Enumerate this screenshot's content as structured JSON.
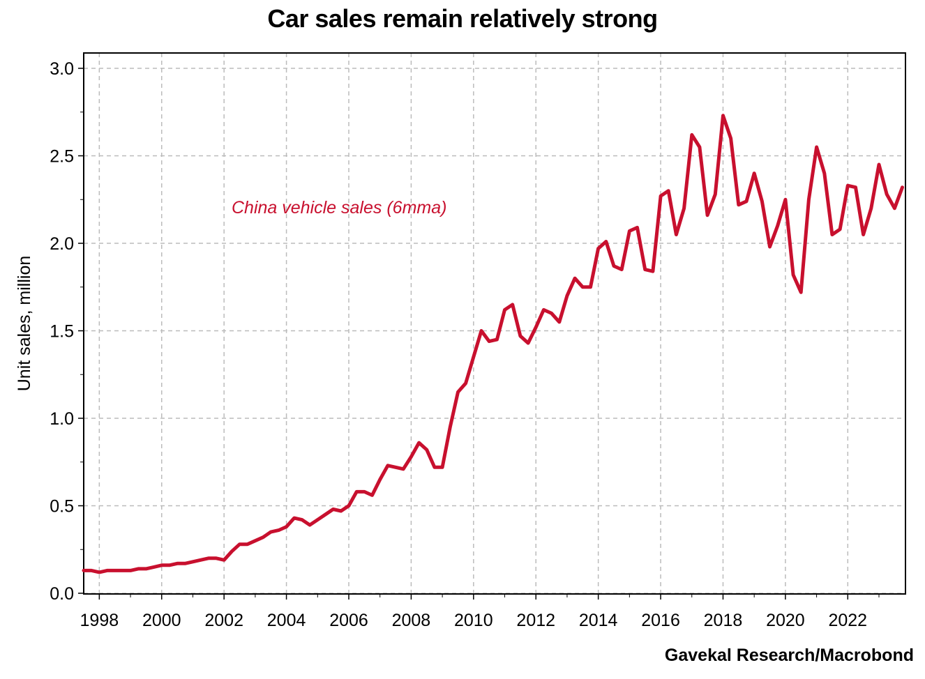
{
  "chart_data": {
    "type": "line",
    "title": "Car sales remain relatively strong",
    "ylabel": "Unit sales, million",
    "xlabel": "",
    "source": "Gavekal Research/Macrobond",
    "xlim": [
      1997.5,
      2023.85
    ],
    "ylim": [
      0,
      3.0
    ],
    "grid": true,
    "x_ticks": [
      "1998",
      "2000",
      "2002",
      "2004",
      "2006",
      "2008",
      "2010",
      "2012",
      "2014",
      "2016",
      "2018",
      "2020",
      "2022"
    ],
    "y_ticks": [
      "0.0",
      "0.5",
      "1.0",
      "1.5",
      "2.0",
      "2.5",
      "3.0"
    ],
    "color": "#c8102e",
    "series": [
      {
        "name": "China vehicle sales (6mma)",
        "x": [
          1997.5,
          1997.75,
          1998,
          1998.25,
          1998.5,
          1998.75,
          1999,
          1999.25,
          1999.5,
          1999.75,
          2000,
          2000.25,
          2000.5,
          2000.75,
          2001,
          2001.25,
          2001.5,
          2001.75,
          2002,
          2002.25,
          2002.5,
          2002.75,
          2003,
          2003.25,
          2003.5,
          2003.75,
          2004,
          2004.25,
          2004.5,
          2004.75,
          2005,
          2005.25,
          2005.5,
          2005.75,
          2006,
          2006.25,
          2006.5,
          2006.75,
          2007,
          2007.25,
          2007.5,
          2007.75,
          2008,
          2008.25,
          2008.5,
          2008.75,
          2009,
          2009.25,
          2009.5,
          2009.75,
          2010,
          2010.25,
          2010.5,
          2010.75,
          2011,
          2011.25,
          2011.5,
          2011.75,
          2012,
          2012.25,
          2012.5,
          2012.75,
          2013,
          2013.25,
          2013.5,
          2013.75,
          2014,
          2014.25,
          2014.5,
          2014.75,
          2015,
          2015.25,
          2015.5,
          2015.75,
          2016,
          2016.25,
          2016.5,
          2016.75,
          2017,
          2017.25,
          2017.5,
          2017.75,
          2018,
          2018.25,
          2018.5,
          2018.75,
          2019,
          2019.25,
          2019.5,
          2019.75,
          2020,
          2020.25,
          2020.5,
          2020.75,
          2021,
          2021.25,
          2021.5,
          2021.75,
          2022,
          2022.25,
          2022.5,
          2022.75,
          2023,
          2023.25,
          2023.5,
          2023.75
        ],
        "y": [
          0.13,
          0.13,
          0.12,
          0.13,
          0.13,
          0.13,
          0.13,
          0.14,
          0.14,
          0.15,
          0.16,
          0.16,
          0.17,
          0.17,
          0.18,
          0.19,
          0.2,
          0.2,
          0.19,
          0.24,
          0.28,
          0.28,
          0.3,
          0.32,
          0.35,
          0.36,
          0.38,
          0.43,
          0.42,
          0.39,
          0.42,
          0.45,
          0.48,
          0.47,
          0.5,
          0.58,
          0.58,
          0.56,
          0.65,
          0.73,
          0.72,
          0.71,
          0.78,
          0.86,
          0.82,
          0.72,
          0.72,
          0.95,
          1.15,
          1.2,
          1.35,
          1.5,
          1.44,
          1.45,
          1.62,
          1.65,
          1.47,
          1.43,
          1.52,
          1.62,
          1.6,
          1.55,
          1.7,
          1.8,
          1.75,
          1.75,
          1.97,
          2.01,
          1.87,
          1.85,
          2.07,
          2.09,
          1.85,
          1.84,
          2.27,
          2.3,
          2.05,
          2.2,
          2.62,
          2.55,
          2.16,
          2.28,
          2.73,
          2.6,
          2.22,
          2.24,
          2.4,
          2.24,
          1.98,
          2.1,
          2.25,
          1.82,
          1.72,
          2.25,
          2.55,
          2.4,
          2.05,
          2.08,
          2.33,
          2.32,
          2.05,
          2.2,
          2.45,
          2.28,
          2.2,
          2.32
        ]
      }
    ]
  }
}
